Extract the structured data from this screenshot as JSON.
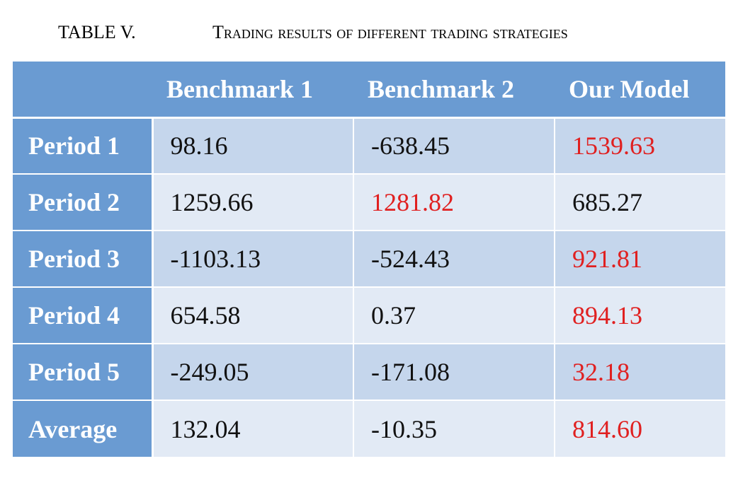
{
  "caption": {
    "label": "TABLE V.",
    "title": "Trading results of different trading strategies"
  },
  "table": {
    "headers": [
      "",
      "Benchmark 1",
      "Benchmark 2",
      "Our Model"
    ],
    "rows": [
      {
        "label": "Period 1",
        "values": [
          "98.16",
          "-638.45",
          "1539.63"
        ],
        "highlight": 2
      },
      {
        "label": "Period 2",
        "values": [
          "1259.66",
          "1281.82",
          "685.27"
        ],
        "highlight": 1
      },
      {
        "label": "Period 3",
        "values": [
          "-1103.13",
          "-524.43",
          "921.81"
        ],
        "highlight": 2
      },
      {
        "label": "Period 4",
        "values": [
          "654.58",
          "0.37",
          "894.13"
        ],
        "highlight": 2
      },
      {
        "label": "Period 5",
        "values": [
          "-249.05",
          "-171.08",
          "32.18"
        ],
        "highlight": 2
      },
      {
        "label": "Average",
        "values": [
          "132.04",
          "-10.35",
          "814.60"
        ],
        "highlight": 2
      }
    ]
  },
  "colors": {
    "header_bg": "#6a9bd2",
    "row_dark": "#c5d6ec",
    "row_light": "#e2eaf5",
    "highlight_text": "#e02020"
  }
}
